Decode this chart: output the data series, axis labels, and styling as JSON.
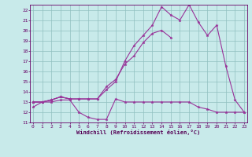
{
  "background_color": "#c8eaea",
  "grid_color": "#90c0c0",
  "line_color": "#993399",
  "xlabel": "Windchill (Refroidissement éolien,°C)",
  "x_values": [
    0,
    1,
    2,
    3,
    4,
    5,
    6,
    7,
    8,
    9,
    10,
    11,
    12,
    13,
    14,
    15,
    16,
    17,
    18,
    19,
    20,
    21,
    22,
    23
  ],
  "series": [
    [
      12.5,
      13.0,
      13.0,
      13.2,
      13.2,
      12.0,
      11.5,
      11.3,
      11.3,
      13.3,
      13.0,
      13.0,
      13.0,
      13.0,
      13.0,
      13.0,
      13.0,
      13.0,
      12.5,
      12.3,
      12.0,
      12.0,
      12.0,
      12.0
    ],
    [
      13.0,
      13.0,
      13.2,
      13.5,
      13.3,
      null,
      null,
      null,
      null,
      null,
      null,
      null,
      null,
      null,
      null,
      null,
      null,
      null,
      null,
      null,
      null,
      null,
      null,
      null
    ],
    [
      13.0,
      13.0,
      13.2,
      13.5,
      13.3,
      13.3,
      13.3,
      13.3,
      14.5,
      15.2,
      16.7,
      17.5,
      18.8,
      19.7,
      20.0,
      19.3,
      null,
      null,
      null,
      null,
      null,
      null,
      null,
      null
    ],
    [
      13.0,
      13.0,
      13.2,
      13.5,
      13.3,
      13.3,
      13.3,
      13.3,
      14.2,
      15.0,
      17.0,
      18.5,
      19.5,
      20.5,
      22.3,
      21.5,
      21.0,
      22.5,
      20.8,
      19.5,
      20.5,
      16.5,
      13.2,
      12.0
    ]
  ],
  "ylim": [
    11,
    22.5
  ],
  "xlim": [
    -0.3,
    23.3
  ],
  "yticks": [
    11,
    12,
    13,
    14,
    15,
    16,
    17,
    18,
    19,
    20,
    21,
    22
  ],
  "xticks": [
    0,
    1,
    2,
    3,
    4,
    5,
    6,
    7,
    8,
    9,
    10,
    11,
    12,
    13,
    14,
    15,
    16,
    17,
    18,
    19,
    20,
    21,
    22,
    23
  ],
  "tick_color": "#660066",
  "xlabel_color": "#550055",
  "spine_color": "#660066",
  "tick_fontsize": 4.5,
  "xlabel_fontsize": 5.0,
  "line_width": 0.8,
  "marker_size": 2.5
}
